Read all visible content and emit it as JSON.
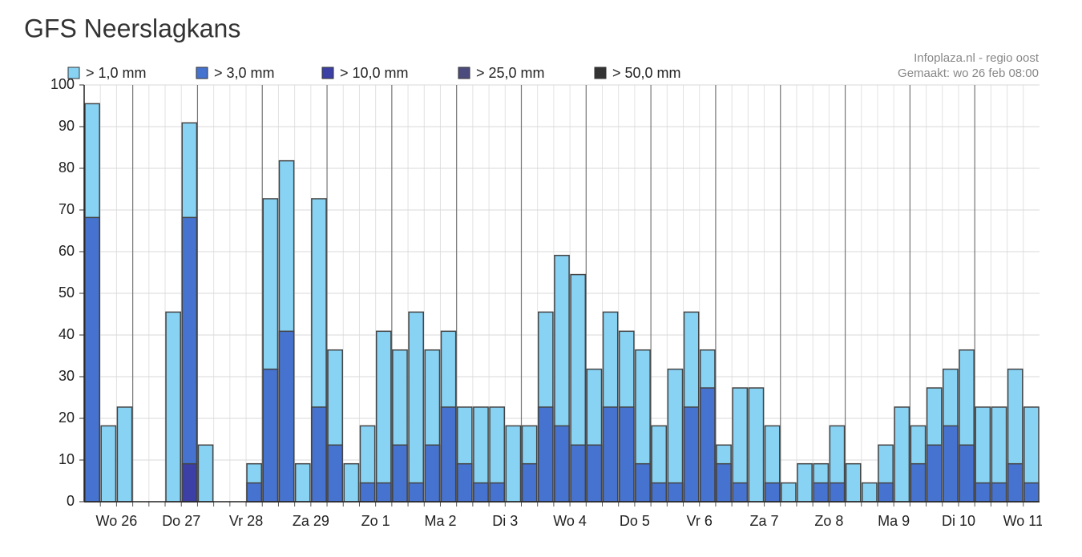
{
  "title": "GFS Neerslagkans",
  "chart_data": {
    "type": "bar",
    "mode": "overlap",
    "credits": [
      "Infoplaza.nl - regio oost",
      "Gemaakt: wo 26 feb 08:00"
    ],
    "x_labels": [
      "Wo 26",
      "Do 27",
      "Vr 28",
      "Za 29",
      "Zo 1",
      "Ma 2",
      "Di 3",
      "Wo 4",
      "Do 5",
      "Vr 6",
      "Za 7",
      "Zo 8",
      "Ma 9",
      "Di 10",
      "Wo 11"
    ],
    "ylim": [
      0,
      100
    ],
    "yticks": [
      0,
      10,
      20,
      30,
      40,
      50,
      60,
      70,
      80,
      90,
      100
    ],
    "grid": true,
    "series": [
      {
        "name": "> 1,0 mm",
        "color": "#88d3f4",
        "values": [
          95.5,
          18.2,
          22.7,
          0,
          0,
          45.5,
          90.9,
          13.6,
          0,
          0,
          9.1,
          72.7,
          81.8,
          9.1,
          72.7,
          36.4,
          9.1,
          18.2,
          40.9,
          36.4,
          45.5,
          36.4,
          40.9,
          22.7,
          22.7,
          22.7,
          18.2,
          18.2,
          45.5,
          59.1,
          54.5,
          31.8,
          45.5,
          40.9,
          36.4,
          18.2,
          31.8,
          45.5,
          36.4,
          13.6,
          27.3,
          27.3,
          18.2,
          4.5,
          9.1,
          9.1,
          18.2,
          9.1,
          4.5,
          13.6,
          22.7,
          18.2,
          27.3,
          31.8,
          36.4,
          22.7,
          22.7,
          31.8,
          22.7
        ]
      },
      {
        "name": "> 3,0 mm",
        "color": "#4673cf",
        "values": [
          68.2,
          0,
          0,
          0,
          0,
          0,
          68.2,
          0,
          0,
          0,
          4.5,
          31.8,
          40.9,
          0,
          22.7,
          13.6,
          0,
          4.5,
          4.5,
          13.6,
          4.5,
          13.6,
          22.7,
          9.1,
          4.5,
          4.5,
          0,
          9.1,
          22.7,
          18.2,
          13.6,
          13.6,
          22.7,
          22.7,
          9.1,
          4.5,
          4.5,
          22.7,
          27.3,
          9.1,
          4.5,
          0,
          4.5,
          0,
          0,
          4.5,
          4.5,
          0,
          0,
          4.5,
          0,
          9.1,
          13.6,
          18.2,
          13.6,
          4.5,
          4.5,
          9.1,
          4.5
        ]
      },
      {
        "name": "> 10,0 mm",
        "color": "#3b3fa6",
        "values": [
          0,
          0,
          0,
          0,
          0,
          0,
          9.1,
          0,
          0,
          0,
          0,
          0,
          0,
          0,
          0,
          0,
          0,
          0,
          0,
          0,
          0,
          0,
          0,
          0,
          0,
          0,
          0,
          0,
          0,
          0,
          0,
          0,
          0,
          0,
          0,
          0,
          0,
          0,
          0,
          0,
          0,
          0,
          0,
          0,
          0,
          0,
          0,
          0,
          0,
          0,
          0,
          0,
          0,
          0,
          0,
          0,
          0,
          0,
          0
        ]
      },
      {
        "name": "> 25,0 mm",
        "color": "#4b4b7e",
        "values": [
          0,
          0,
          0,
          0,
          0,
          0,
          0,
          0,
          0,
          0,
          0,
          0,
          0,
          0,
          0,
          0,
          0,
          0,
          0,
          0,
          0,
          0,
          0,
          0,
          0,
          0,
          0,
          0,
          0,
          0,
          0,
          0,
          0,
          0,
          0,
          0,
          0,
          0,
          0,
          0,
          0,
          0,
          0,
          0,
          0,
          0,
          0,
          0,
          0,
          0,
          0,
          0,
          0,
          0,
          0,
          0,
          0,
          0,
          0
        ]
      },
      {
        "name": "> 50,0 mm",
        "color": "#333333",
        "values": [
          0,
          0,
          0,
          0,
          0,
          0,
          0,
          0,
          0,
          0,
          0,
          0,
          0,
          0,
          0,
          0,
          0,
          0,
          0,
          0,
          0,
          0,
          0,
          0,
          0,
          0,
          0,
          0,
          0,
          0,
          0,
          0,
          0,
          0,
          0,
          0,
          0,
          0,
          0,
          0,
          0,
          0,
          0,
          0,
          0,
          0,
          0,
          0,
          0,
          0,
          0,
          0,
          0,
          0,
          0,
          0,
          0,
          0,
          0
        ]
      }
    ]
  }
}
